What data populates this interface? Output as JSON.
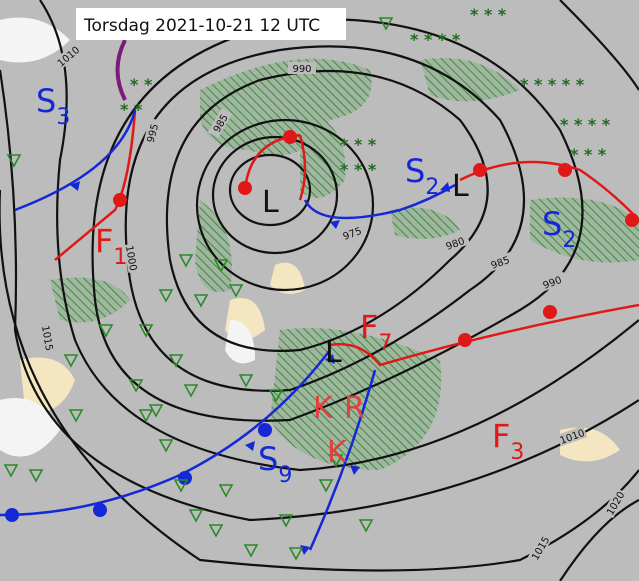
{
  "title": "Torsdag 2021-10-21 12 UTC",
  "isobar_labels": [
    1010,
    990,
    995,
    985,
    975,
    980,
    985,
    990,
    1000,
    1015,
    1010,
    1015,
    1020
  ],
  "pressure_centers": [
    "L",
    "L",
    "L"
  ],
  "front_labels": [
    {
      "letter": "S",
      "sub": "3"
    },
    {
      "letter": "F",
      "sub": "1"
    },
    {
      "letter": "S",
      "sub": "2"
    },
    {
      "letter": "S",
      "sub": "2"
    },
    {
      "letter": "F",
      "sub": "7"
    },
    {
      "letter": "F",
      "sub": "3"
    },
    {
      "letter": "S",
      "sub": "9"
    }
  ],
  "air_mass_labels": [
    "K",
    "R",
    "K"
  ]
}
